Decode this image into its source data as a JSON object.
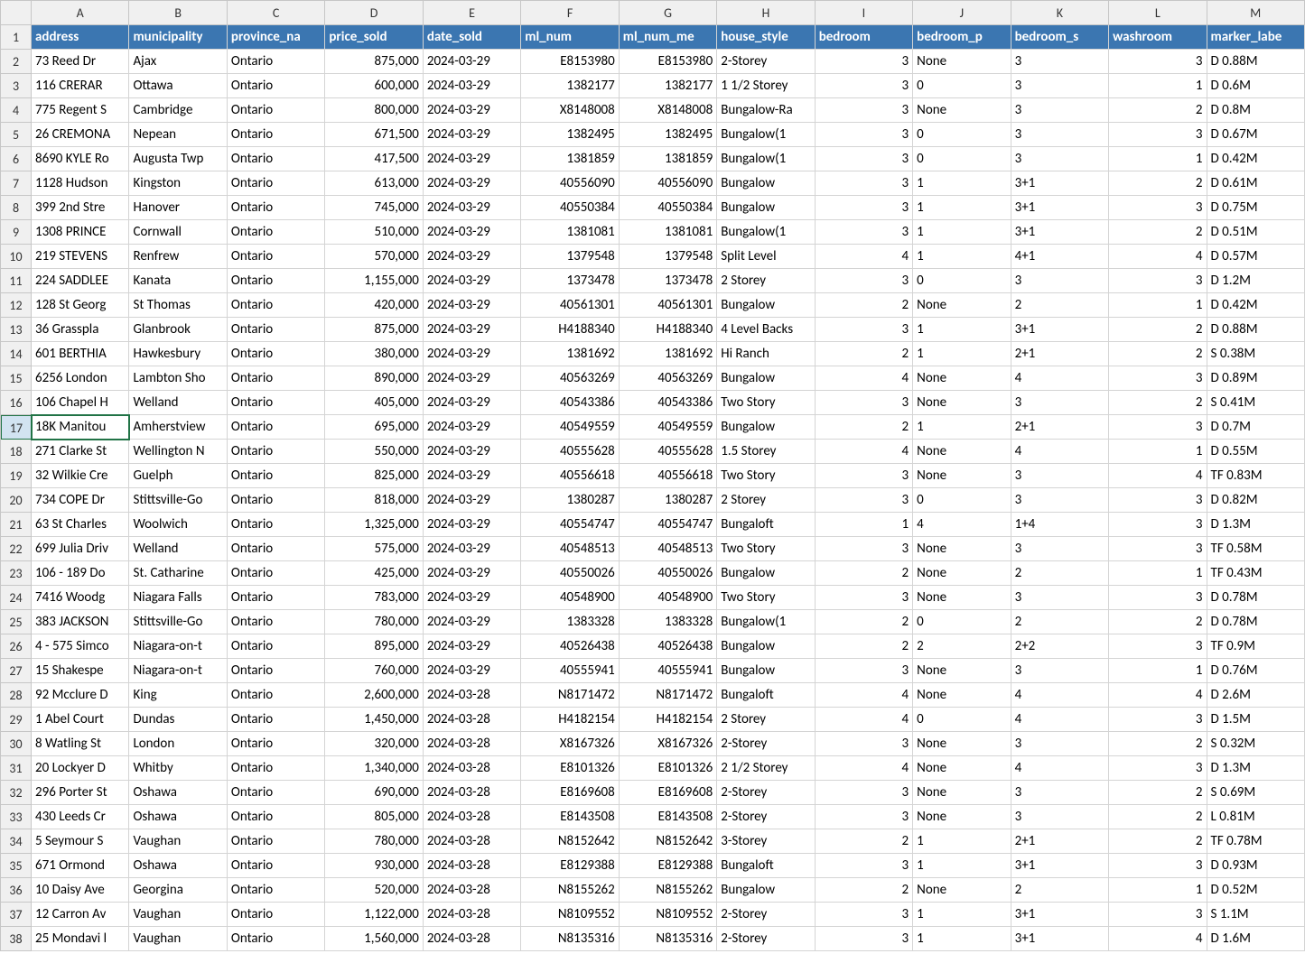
{
  "columns_letters": [
    "A",
    "B",
    "C",
    "D",
    "E",
    "F",
    "G",
    "H",
    "I",
    "J",
    "K",
    "L",
    "M"
  ],
  "headers": [
    "address",
    "municipality",
    "province_na",
    "price_sold",
    "date_sold",
    "ml_num",
    "ml_num_me",
    "house_style",
    "bedroom",
    "bedroom_p",
    "bedroom_s",
    "washroom",
    "marker_labe"
  ],
  "header_bg": "#3b76b1",
  "header_fg": "#ffffff",
  "grid_border": "#d4d4d4",
  "frame_border": "#c6c6c6",
  "selected_row": 17,
  "selected_col": 0,
  "numeric_cols": [
    3,
    5,
    6,
    8,
    11
  ],
  "rows": [
    [
      "73 Reed Dr",
      "Ajax",
      "Ontario",
      "875,000",
      "2024-03-29",
      "E8153980",
      "E8153980",
      "2-Storey",
      "3",
      " None",
      "3",
      "3",
      "D 0.88M"
    ],
    [
      "116 CRERAR",
      "Ottawa",
      "Ontario",
      "600,000",
      "2024-03-29",
      "1382177",
      "1382177",
      "1 1/2 Storey",
      "3",
      " 0",
      "3",
      "1",
      "D 0.6M"
    ],
    [
      "775 Regent S",
      "Cambridge",
      "Ontario",
      "800,000",
      "2024-03-29",
      "X8148008",
      "X8148008",
      "Bungalow-Ra",
      "3",
      " None",
      "3",
      "2",
      "D 0.8M"
    ],
    [
      "26 CREMONA",
      "Nepean",
      "Ontario",
      "671,500",
      "2024-03-29",
      "1382495",
      "1382495",
      "Bungalow(1",
      "3",
      " 0",
      "3",
      "3",
      "D 0.67M"
    ],
    [
      "8690 KYLE Ro",
      "Augusta Twp",
      "Ontario",
      "417,500",
      "2024-03-29",
      "1381859",
      "1381859",
      "Bungalow(1",
      "3",
      " 0",
      "3",
      "1",
      "D 0.42M"
    ],
    [
      "1128 Hudson",
      "Kingston",
      "Ontario",
      "613,000",
      "2024-03-29",
      "40556090",
      "40556090",
      "Bungalow",
      "3",
      " 1",
      "3+1",
      "2",
      "D 0.61M"
    ],
    [
      "399 2nd Stre",
      "Hanover",
      "Ontario",
      "745,000",
      "2024-03-29",
      "40550384",
      "40550384",
      "Bungalow",
      "3",
      " 1",
      "3+1",
      "3",
      "D 0.75M"
    ],
    [
      "1308 PRINCE",
      "Cornwall",
      "Ontario",
      "510,000",
      "2024-03-29",
      "1381081",
      "1381081",
      "Bungalow(1",
      "3",
      " 1",
      "3+1",
      "2",
      "D 0.51M"
    ],
    [
      "219 STEVENS",
      "Renfrew",
      "Ontario",
      "570,000",
      "2024-03-29",
      "1379548",
      "1379548",
      "Split Level",
      "4",
      " 1",
      "4+1",
      "4",
      "D 0.57M"
    ],
    [
      "224 SADDLEE",
      "Kanata",
      "Ontario",
      "1,155,000",
      "2024-03-29",
      "1373478",
      "1373478",
      "2 Storey",
      "3",
      " 0",
      "3",
      "3",
      "D 1.2M"
    ],
    [
      "128 St Georg",
      "St Thomas",
      "Ontario",
      "420,000",
      "2024-03-29",
      "40561301",
      "40561301",
      "Bungalow",
      "2",
      " None",
      "2",
      "1",
      "D 0.42M"
    ],
    [
      "36 Grasspla",
      "Glanbrook",
      "Ontario",
      "875,000",
      "2024-03-29",
      "H4188340",
      "H4188340",
      "4 Level Backs",
      "3",
      " 1",
      "3+1",
      "2",
      "D 0.88M"
    ],
    [
      "601 BERTHIA",
      "Hawkesbury",
      "Ontario",
      "380,000",
      "2024-03-29",
      "1381692",
      "1381692",
      "Hi Ranch",
      "2",
      " 1",
      "2+1",
      "2",
      "S 0.38M"
    ],
    [
      "6256 London",
      "Lambton Sho",
      "Ontario",
      "890,000",
      "2024-03-29",
      "40563269",
      "40563269",
      "Bungalow",
      "4",
      " None",
      "4",
      "3",
      "D 0.89M"
    ],
    [
      "106 Chapel H",
      "Welland",
      "Ontario",
      "405,000",
      "2024-03-29",
      "40543386",
      "40543386",
      "Two Story",
      "3",
      " None",
      "3",
      "2",
      "S 0.41M"
    ],
    [
      "18K Manitou",
      "Amherstview",
      "Ontario",
      "695,000",
      "2024-03-29",
      "40549559",
      "40549559",
      "Bungalow",
      "2",
      " 1",
      "2+1",
      "3",
      "D 0.7M"
    ],
    [
      "271 Clarke St",
      "Wellington N",
      "Ontario",
      "550,000",
      "2024-03-29",
      "40555628",
      "40555628",
      "1.5 Storey",
      "4",
      " None",
      "4",
      "1",
      "D 0.55M"
    ],
    [
      "32 Wilkie Cre",
      "Guelph",
      "Ontario",
      "825,000",
      "2024-03-29",
      "40556618",
      "40556618",
      "Two Story",
      "3",
      " None",
      "3",
      "4",
      "TF 0.83M"
    ],
    [
      "734 COPE Dr",
      "Stittsville-Go",
      "Ontario",
      "818,000",
      "2024-03-29",
      "1380287",
      "1380287",
      "2 Storey",
      "3",
      " 0",
      "3",
      "3",
      "D 0.82M"
    ],
    [
      "63 St Charles",
      "Woolwich",
      "Ontario",
      "1,325,000",
      "2024-03-29",
      "40554747",
      "40554747",
      "Bungaloft",
      "1",
      " 4",
      "1+4",
      "3",
      "D 1.3M"
    ],
    [
      "699 Julia Driv",
      "Welland",
      "Ontario",
      "575,000",
      "2024-03-29",
      "40548513",
      "40548513",
      "Two Story",
      "3",
      " None",
      "3",
      "3",
      "TF 0.58M"
    ],
    [
      "106 - 189 Do",
      "St. Catharine",
      "Ontario",
      "425,000",
      "2024-03-29",
      "40550026",
      "40550026",
      "Bungalow",
      "2",
      " None",
      "2",
      "1",
      "TF 0.43M"
    ],
    [
      "7416 Woodg",
      "Niagara Falls",
      "Ontario",
      "783,000",
      "2024-03-29",
      "40548900",
      "40548900",
      "Two Story",
      "3",
      " None",
      "3",
      "3",
      "D 0.78M"
    ],
    [
      "383 JACKSON",
      "Stittsville-Go",
      "Ontario",
      "780,000",
      "2024-03-29",
      "1383328",
      "1383328",
      "Bungalow(1",
      "2",
      " 0",
      "2",
      "2",
      "D 0.78M"
    ],
    [
      "4 - 575 Simco",
      "Niagara-on-t",
      "Ontario",
      "895,000",
      "2024-03-29",
      "40526438",
      "40526438",
      "Bungalow",
      "2",
      " 2",
      "2+2",
      "3",
      "TF 0.9M"
    ],
    [
      "15 Shakespe",
      "Niagara-on-t",
      "Ontario",
      "760,000",
      "2024-03-29",
      "40555941",
      "40555941",
      "Bungalow",
      "3",
      " None",
      "3",
      "1",
      "D 0.76M"
    ],
    [
      "92 Mcclure D",
      "King",
      "Ontario",
      "2,600,000",
      "2024-03-28",
      "N8171472",
      "N8171472",
      "Bungaloft",
      "4",
      " None",
      "4",
      "4",
      "D 2.6M"
    ],
    [
      "1 Abel Court",
      "Dundas",
      "Ontario",
      "1,450,000",
      "2024-03-28",
      "H4182154",
      "H4182154",
      "2 Storey",
      "4",
      " 0",
      "4",
      "3",
      "D 1.5M"
    ],
    [
      "8 Watling St",
      "London",
      "Ontario",
      "320,000",
      "2024-03-28",
      "X8167326",
      "X8167326",
      "2-Storey",
      "3",
      " None",
      "3",
      "2",
      "S 0.32M"
    ],
    [
      "20 Lockyer D",
      "Whitby",
      "Ontario",
      "1,340,000",
      "2024-03-28",
      "E8101326",
      "E8101326",
      "2 1/2 Storey",
      "4",
      " None",
      "4",
      "3",
      "D 1.3M"
    ],
    [
      "296 Porter St",
      "Oshawa",
      "Ontario",
      "690,000",
      "2024-03-28",
      "E8169608",
      "E8169608",
      "2-Storey",
      "3",
      " None",
      "3",
      "2",
      "S 0.69M"
    ],
    [
      "430 Leeds Cr",
      "Oshawa",
      "Ontario",
      "805,000",
      "2024-03-28",
      "E8143508",
      "E8143508",
      "2-Storey",
      "3",
      " None",
      "3",
      "2",
      "L 0.81M"
    ],
    [
      "5 Seymour S",
      "Vaughan",
      "Ontario",
      "780,000",
      "2024-03-28",
      "N8152642",
      "N8152642",
      "3-Storey",
      "2",
      " 1",
      "2+1",
      "2",
      "TF 0.78M"
    ],
    [
      "671 Ormond",
      "Oshawa",
      "Ontario",
      "930,000",
      "2024-03-28",
      "E8129388",
      "E8129388",
      "Bungaloft",
      "3",
      " 1",
      "3+1",
      "3",
      "D 0.93M"
    ],
    [
      "10 Daisy Ave",
      "Georgina",
      "Ontario",
      "520,000",
      "2024-03-28",
      "N8155262",
      "N8155262",
      "Bungalow",
      "2",
      " None",
      "2",
      "1",
      "D 0.52M"
    ],
    [
      "12 Carron Av",
      "Vaughan",
      "Ontario",
      "1,122,000",
      "2024-03-28",
      "N8109552",
      "N8109552",
      "2-Storey",
      "3",
      " 1",
      "3+1",
      "3",
      "S 1.1M"
    ],
    [
      "25 Mondavi l",
      "Vaughan",
      "Ontario",
      "1,560,000",
      "2024-03-28",
      "N8135316",
      "N8135316",
      "2-Storey",
      "3",
      " 1",
      "3+1",
      "4",
      "D 1.6M"
    ]
  ]
}
